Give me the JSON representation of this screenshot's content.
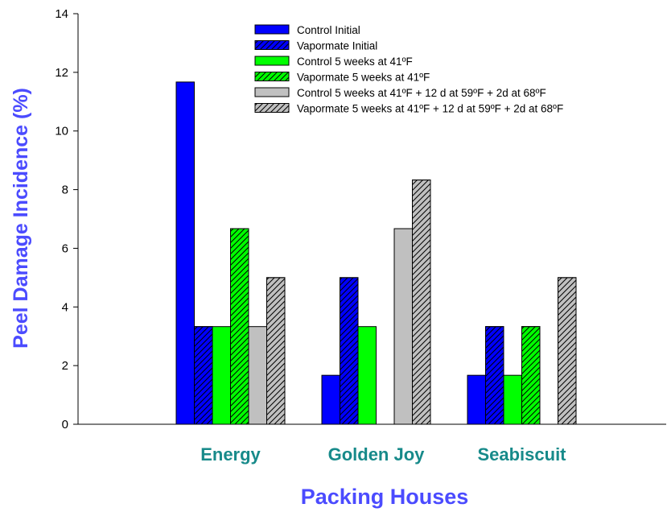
{
  "chart_data": {
    "type": "bar",
    "xlabel": "Packing Houses",
    "ylabel": "Peel Damage Incidence (%)",
    "ylim": [
      0,
      14
    ],
    "yticks": [
      0,
      2,
      4,
      6,
      8,
      10,
      12,
      14
    ],
    "categories": [
      "Energy",
      "Golden Joy",
      "Seabiscuit"
    ],
    "legend_position": "top-right",
    "grid": false,
    "series": [
      {
        "name": "Control Initial",
        "color": "#0000ff",
        "hatch": false,
        "values": [
          11.67,
          1.67,
          1.67
        ]
      },
      {
        "name": "Vapormate Initial",
        "color": "#0000ff",
        "hatch": true,
        "values": [
          3.33,
          5.0,
          3.33
        ]
      },
      {
        "name": "Control 5 weeks at 41ºF",
        "color": "#00ff00",
        "hatch": false,
        "values": [
          3.33,
          3.33,
          1.67
        ]
      },
      {
        "name": "Vapormate 5 weeks at 41ºF",
        "color": "#00ff00",
        "hatch": true,
        "values": [
          6.67,
          0,
          3.33
        ]
      },
      {
        "name": "Control 5 weeks at 41ºF + 12 d at 59ºF + 2d at 68ºF",
        "color": "#c0c0c0",
        "hatch": false,
        "values": [
          3.33,
          6.67,
          0
        ]
      },
      {
        "name": "Vapormate 5 weeks at 41ºF + 12 d at 59ºF + 2d at 68ºF",
        "color": "#c0c0c0",
        "hatch": true,
        "values": [
          5.0,
          8.33,
          5.0
        ]
      }
    ]
  }
}
